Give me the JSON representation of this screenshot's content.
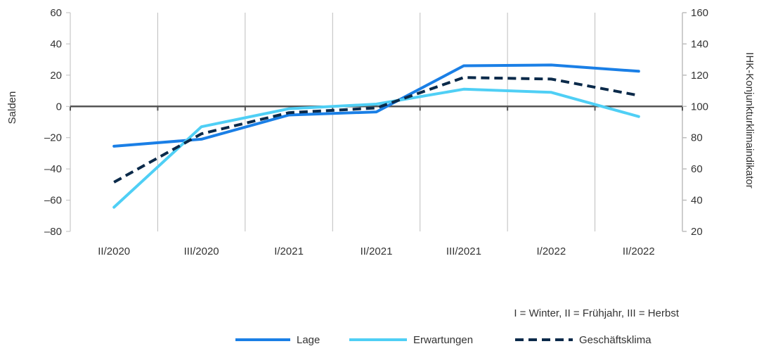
{
  "chart_data": {
    "type": "line",
    "categories": [
      "II/2020",
      "III/2020",
      "I/2021",
      "II/2021",
      "III/2021",
      "I/2022",
      "II/2022"
    ],
    "series": [
      {
        "name": "Lage",
        "axis": "left",
        "color": "#1a7fe6",
        "style": "solid",
        "values": [
          -25.5,
          -21,
          -5.5,
          -3.5,
          26,
          26.5,
          22.5
        ]
      },
      {
        "name": "Erwartungen",
        "axis": "left",
        "color": "#4fcff5",
        "style": "solid",
        "values": [
          -64.5,
          -13,
          -1.5,
          1.5,
          11,
          9,
          -6.5
        ]
      },
      {
        "name": "Geschäftsklima",
        "axis": "right",
        "color": "#0b2a4a",
        "style": "dashed",
        "values": [
          51.5,
          82.5,
          96,
          99,
          118.5,
          117.5,
          107
        ]
      }
    ],
    "yleft": {
      "label": "Salden",
      "min": -80,
      "max": 60,
      "ticks": [
        60,
        40,
        20,
        0,
        -20,
        -40,
        -60,
        -80
      ]
    },
    "yright": {
      "label": "IHK-Konjunkturklimaindikator",
      "min": 20,
      "max": 160,
      "ticks": [
        160,
        140,
        120,
        100,
        80,
        60,
        40,
        20
      ]
    },
    "note": "I = Winter, II = Frühjahr, III = Herbst",
    "grid": "vertical"
  }
}
